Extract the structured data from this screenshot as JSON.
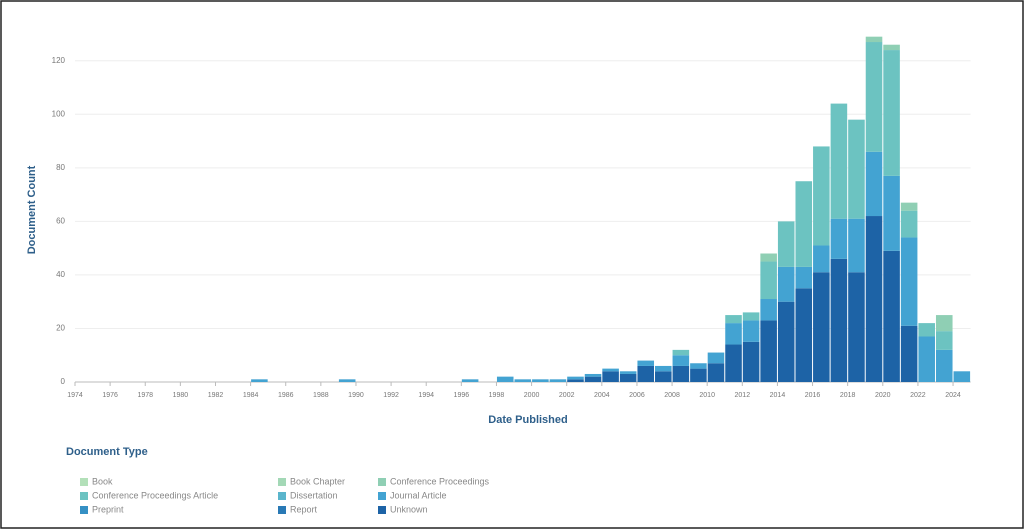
{
  "chart_data": {
    "type": "bar",
    "x_label": "Date Published",
    "y_label": "Document Count",
    "legend_title": "Document Type",
    "x": [
      1984,
      1989,
      1996,
      1998,
      1999,
      2000,
      2001,
      2002,
      2003,
      2004,
      2005,
      2006,
      2007,
      2008,
      2009,
      2010,
      2011,
      2012,
      2013,
      2014,
      2015,
      2016,
      2017,
      2018,
      2019,
      2020,
      2021,
      2022,
      2023,
      2024
    ],
    "xlim": [
      1974,
      2025
    ],
    "xticks": [
      1974,
      1976,
      1978,
      1980,
      1982,
      1984,
      1986,
      1988,
      1990,
      1992,
      1994,
      1996,
      1998,
      2000,
      2002,
      2004,
      2006,
      2008,
      2010,
      2012,
      2014,
      2016,
      2018,
      2020,
      2022,
      2024
    ],
    "ylim": [
      0,
      130
    ],
    "yticks": [
      0,
      20,
      40,
      60,
      80,
      100,
      120
    ],
    "grid": true,
    "stacked": true,
    "series": [
      {
        "name": "Book",
        "color": "#b3e0b9",
        "values": [
          0,
          0,
          0,
          0,
          0,
          0,
          0,
          0,
          0,
          0,
          0,
          0,
          0,
          0,
          0,
          0,
          0,
          0,
          0,
          0,
          0,
          0,
          0,
          0,
          0,
          0,
          0,
          0,
          0,
          0
        ]
      },
      {
        "name": "Book Chapter",
        "color": "#a3d8b6",
        "values": [
          0,
          0,
          0,
          0,
          0,
          0,
          0,
          0,
          0,
          0,
          0,
          0,
          0,
          0,
          0,
          0,
          0,
          0,
          0,
          0,
          0,
          0,
          0,
          0,
          0,
          0,
          0,
          0,
          0,
          0
        ]
      },
      {
        "name": "Conference Proceedings",
        "color": "#8fcfb4",
        "values": [
          0,
          0,
          0,
          0,
          0,
          0,
          0,
          0,
          0,
          0,
          0,
          0,
          0,
          0,
          0,
          0,
          0,
          0,
          3,
          0,
          0,
          0,
          0,
          0,
          2,
          2,
          3,
          0,
          6,
          0
        ]
      },
      {
        "name": "Conference Proceedings Article",
        "color": "#6cc3c1",
        "values": [
          0,
          0,
          0,
          0,
          0,
          0,
          0,
          0,
          0,
          0,
          0,
          0,
          0,
          2,
          0,
          0,
          3,
          3,
          14,
          17,
          32,
          37,
          43,
          37,
          41,
          47,
          10,
          5,
          7,
          0
        ]
      },
      {
        "name": "Dissertation",
        "color": "#5ab5cc",
        "values": [
          0,
          0,
          0,
          0,
          0,
          0,
          0,
          0,
          0,
          0,
          0,
          0,
          0,
          0,
          0,
          0,
          0,
          0,
          0,
          0,
          0,
          0,
          0,
          0,
          0,
          0,
          0,
          0,
          0,
          0
        ]
      },
      {
        "name": "Journal Article",
        "color": "#43a3d2",
        "values": [
          1,
          1,
          1,
          2,
          1,
          1,
          1,
          1,
          1,
          1,
          1,
          2,
          2,
          4,
          2,
          4,
          8,
          8,
          8,
          13,
          8,
          10,
          15,
          20,
          24,
          28,
          33,
          17,
          12,
          4
        ]
      },
      {
        "name": "Preprint",
        "color": "#3590c4",
        "values": [
          0,
          0,
          0,
          0,
          0,
          0,
          0,
          0,
          0,
          0,
          0,
          0,
          0,
          0,
          0,
          0,
          0,
          0,
          0,
          0,
          0,
          0,
          0,
          0,
          0,
          0,
          0,
          0,
          0,
          0
        ]
      },
      {
        "name": "Report",
        "color": "#2979b5",
        "values": [
          0,
          0,
          0,
          0,
          0,
          0,
          0,
          0,
          0,
          0,
          0,
          0,
          0,
          0,
          0,
          0,
          0,
          0,
          0,
          0,
          0,
          0,
          0,
          0,
          0,
          0,
          0,
          0,
          0,
          0
        ]
      },
      {
        "name": "Unknown",
        "color": "#1d63a6",
        "values": [
          0,
          0,
          0,
          0,
          0,
          0,
          0,
          1,
          2,
          4,
          3,
          6,
          4,
          6,
          5,
          7,
          14,
          15,
          23,
          30,
          35,
          41,
          46,
          41,
          62,
          49,
          21,
          0,
          0,
          0
        ]
      }
    ]
  }
}
